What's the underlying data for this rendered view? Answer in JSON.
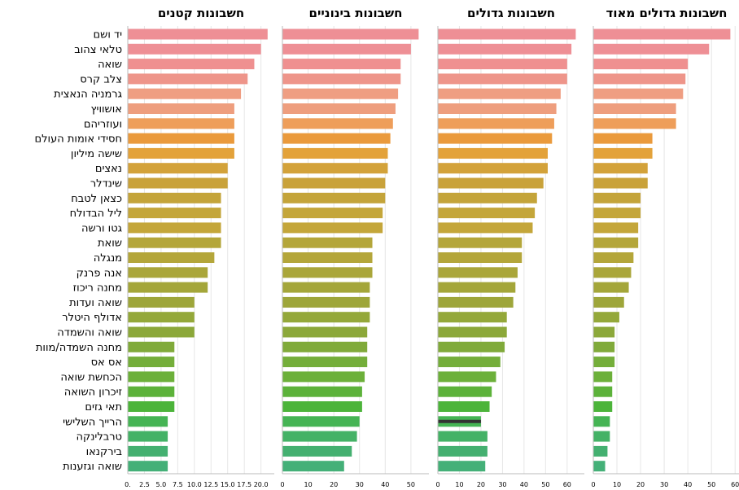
{
  "chart_data": {
    "type": "bar",
    "orientation": "horizontal",
    "categories": [
      "יד ושם",
      "טלאי צהוב",
      "שואה",
      "צלב קרס",
      "גרמניה הנאצית",
      "אושוויץ",
      "ועוזריהם",
      "חסידי אומות העולם",
      "שישה מיליון",
      "נאצים",
      "שינדלר",
      "כצאן לטבח",
      "ליל הבדולח",
      "גטו ורשה",
      "שואת",
      "מנגלה",
      "אנה פרנק",
      "מחנה ריכוז",
      "שואה ועדות",
      "אדולף היטלר",
      "שואה והשמדה",
      "מחנה השמדה/מוות",
      "אס אס",
      "הכחשת שואה",
      "זיכרון השואה",
      "תאי גזים",
      "הרייך השלישי",
      "טרבלינקה",
      "בירקנאו",
      "שואה וגזענות"
    ],
    "bar_colors": [
      "#ee8f95",
      "#ee8f95",
      "#ef9090",
      "#ee958a",
      "#ef9e82",
      "#ee9e7e",
      "#ee9e5a",
      "#ea9a3c",
      "#e3a23a",
      "#d3a23a",
      "#c9a23a",
      "#c4a43a",
      "#c4a63a",
      "#c4a63a",
      "#b4a63a",
      "#b4a63a",
      "#aaa63a",
      "#a4a63a",
      "#9ea63a",
      "#94a83a",
      "#8ca83a",
      "#80aa3a",
      "#74ae3a",
      "#6cb03a",
      "#5cb23a",
      "#4cb43a",
      "#45b454",
      "#44b266",
      "#44b070",
      "#44b078"
    ],
    "panels": [
      {
        "title": "חשבונות קטנים",
        "xlim": [
          0,
          22
        ],
        "ticks": [
          0,
          2.5,
          5,
          7.5,
          10,
          12.5,
          15,
          17.5,
          20
        ],
        "tick_labels": [
          "0.",
          "2.5",
          "5.0",
          "7.5",
          "10.0",
          "12.5",
          "15.0",
          "17.5",
          "20.0"
        ],
        "values": [
          21,
          20,
          19,
          18,
          17,
          16,
          16,
          16,
          16,
          15,
          15,
          14,
          14,
          14,
          14,
          13,
          12,
          12,
          10,
          10,
          10,
          7,
          7,
          7,
          7,
          7,
          6,
          6,
          6,
          6
        ]
      },
      {
        "title": "חשבונות בינוניים",
        "xlim": [
          0,
          57
        ],
        "ticks": [
          0,
          10,
          20,
          30,
          40,
          50
        ],
        "tick_labels": [
          "0",
          "10",
          "20",
          "30",
          "40",
          "50"
        ],
        "values": [
          53,
          50,
          46,
          46,
          45,
          44,
          43,
          42,
          41,
          41,
          40,
          40,
          39,
          39,
          35,
          35,
          35,
          34,
          34,
          34,
          33,
          33,
          33,
          32,
          31,
          31,
          30,
          29,
          27,
          24
        ]
      },
      {
        "title": "חשבונות גדולים",
        "xlim": [
          0,
          68
        ],
        "ticks": [
          0,
          10,
          20,
          30,
          40,
          50,
          60
        ],
        "tick_labels": [
          "0",
          "10",
          "20",
          "30",
          "40",
          "50",
          "60"
        ],
        "values": [
          64,
          62,
          60,
          60,
          57,
          55,
          54,
          53,
          51,
          51,
          49,
          46,
          45,
          44,
          39,
          39,
          37,
          36,
          35,
          32,
          32,
          31,
          29,
          27,
          25,
          24,
          20,
          23,
          23,
          22
        ],
        "error_bar": {
          "category": "הרייך השלישי",
          "low": 0,
          "high": 20
        }
      },
      {
        "title": "חשבונות גדולים מאוד",
        "xlim": [
          0,
          62
        ],
        "ticks": [
          0,
          10,
          20,
          30,
          40,
          50,
          60
        ],
        "tick_labels": [
          "0",
          "10",
          "20",
          "30",
          "40",
          "50",
          "60"
        ],
        "values": [
          58,
          49,
          40,
          39,
          38,
          35,
          35,
          25,
          25,
          23,
          23,
          20,
          20,
          19,
          19,
          17,
          16,
          15,
          13,
          11,
          9,
          9,
          9,
          8,
          8,
          8,
          7,
          7,
          6,
          5
        ]
      }
    ],
    "grid": true,
    "legend": "none"
  }
}
